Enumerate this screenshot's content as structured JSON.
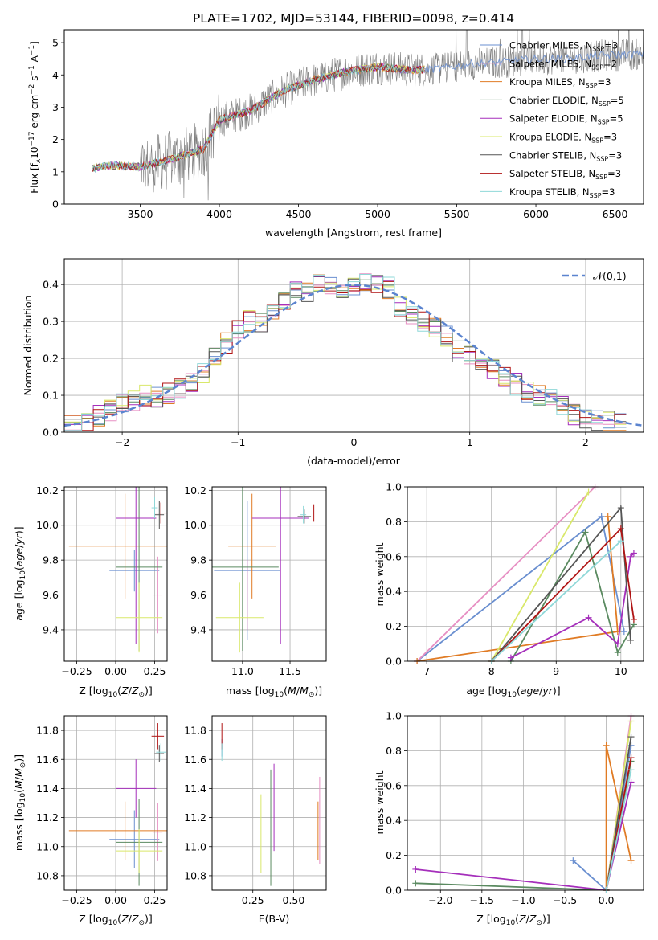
{
  "chart_data": [
    {
      "id": "spectrum",
      "type": "line",
      "title": "PLATE=1702, MJD=53144, FIBERID=0098, z=0.414",
      "xlabel": "wavelength [Angstrom, rest frame]",
      "ylabel": "Flux [f_λ10^-17 erg cm^-2 s^-1 A^-1]",
      "xlim": [
        3020,
        6680
      ],
      "ylim": [
        0,
        5.4
      ],
      "xticks": [
        3500,
        4000,
        4500,
        5000,
        5500,
        6000,
        6500
      ],
      "yticks": [
        0,
        1,
        2,
        3,
        4,
        5
      ],
      "legend_position": "upper-right",
      "series": [
        {
          "name": "Chabrier MILES, N_SSP=3",
          "color": "#6a8fd0"
        },
        {
          "name": "Salpeter MILES, N_SSP=2",
          "color": "#e78fc3"
        },
        {
          "name": "Kroupa MILES, N_SSP=3",
          "color": "#e07b24"
        },
        {
          "name": "Chabrier ELODIE, N_SSP=5",
          "color": "#5a8a60"
        },
        {
          "name": "Salpeter ELODIE, N_SSP=5",
          "color": "#a52fbb"
        },
        {
          "name": "Kroupa ELODIE, N_SSP=3",
          "color": "#d9e86a"
        },
        {
          "name": "Chabrier STELIB, N_SSP=3",
          "color": "#555555"
        },
        {
          "name": "Salpeter STELIB, N_SSP=3",
          "color": "#b01414"
        },
        {
          "name": "Kroupa STELIB, N_SSP=3",
          "color": "#8fd8d8"
        }
      ],
      "continuum": {
        "x": [
          3200,
          3300,
          3500,
          3700,
          3900,
          4000,
          4200,
          4400,
          4600,
          4800,
          5000,
          5200,
          5400,
          5600,
          5800,
          6000,
          6200,
          6400,
          6680
        ],
        "y": [
          1.1,
          1.2,
          1.15,
          1.4,
          1.7,
          2.6,
          2.9,
          3.5,
          3.85,
          4.1,
          4.25,
          4.15,
          4.2,
          4.35,
          4.4,
          4.5,
          4.5,
          4.6,
          4.65
        ]
      },
      "data_color": "#7f7f7f"
    },
    {
      "id": "residuals",
      "type": "step",
      "xlabel": "(data-model)/error",
      "ylabel": "Normed distribution",
      "xlim": [
        -2.5,
        2.5
      ],
      "ylim": [
        0,
        0.47
      ],
      "xticks": [
        -2,
        -1,
        0,
        1,
        2
      ],
      "yticks": [
        0,
        0.1,
        0.2,
        0.3,
        0.4
      ],
      "normal_label": "𝒩(0,1)",
      "normal_color": "#5b84cf",
      "base_hist": [
        0.025,
        0.03,
        0.045,
        0.06,
        0.08,
        0.085,
        0.1,
        0.095,
        0.105,
        0.12,
        0.14,
        0.16,
        0.2,
        0.24,
        0.28,
        0.3,
        0.3,
        0.33,
        0.36,
        0.39,
        0.38,
        0.4,
        0.4,
        0.39,
        0.4,
        0.41,
        0.4,
        0.39,
        0.34,
        0.31,
        0.3,
        0.28,
        0.26,
        0.22,
        0.21,
        0.19,
        0.17,
        0.15,
        0.13,
        0.11,
        0.1,
        0.09,
        0.07,
        0.05,
        0.04,
        0.035,
        0.03,
        0.028
      ],
      "bin_width": 0.1
    },
    {
      "id": "age-vs-Z",
      "type": "errorbar",
      "xlabel": "Z [log10(Z/Z⊙)]",
      "ylabel": "age [log10(age/yr)]",
      "xlim": [
        -0.33,
        0.33
      ],
      "ylim": [
        9.22,
        10.22
      ],
      "xticks": [
        -0.25,
        0.0,
        0.25
      ],
      "xticklabels": [
        "−0.25",
        "0.00",
        "0.25"
      ],
      "yticks": [
        9.4,
        9.6,
        9.8,
        10.0,
        10.2
      ],
      "points": [
        {
          "series": 0,
          "x": 0.12,
          "xerr": 0.16,
          "y": 9.74,
          "yerr": 0.12
        },
        {
          "series": 1,
          "x": 0.27,
          "xerr": 0.03,
          "y": 9.6,
          "yerr": 0.22
        },
        {
          "series": 2,
          "x": 0.06,
          "xerr": 0.36,
          "y": 9.88,
          "yerr": 0.3
        },
        {
          "series": 3,
          "x": 0.15,
          "xerr": 0.15,
          "y": 9.76,
          "yerr": 0.48
        },
        {
          "series": 4,
          "x": 0.13,
          "xerr": 0.13,
          "y": 10.04,
          "yerr": 0.72
        },
        {
          "series": 5,
          "x": 0.15,
          "xerr": 0.15,
          "y": 9.47,
          "yerr": 0.2
        },
        {
          "series": 6,
          "x": 0.28,
          "xerr": 0.03,
          "y": 10.06,
          "yerr": 0.08
        },
        {
          "series": 7,
          "x": 0.29,
          "xerr": 0.04,
          "y": 10.07,
          "yerr": 0.06
        },
        {
          "series": 8,
          "x": 0.25,
          "xerr": 0.02,
          "y": 10.1,
          "yerr": 0.06
        }
      ]
    },
    {
      "id": "age-vs-mass",
      "type": "errorbar",
      "xlabel": "mass [log10(M/M⊙)]",
      "xlim": [
        10.68,
        11.88
      ],
      "ylim": [
        9.22,
        10.22
      ],
      "xticks": [
        11.0,
        11.5
      ],
      "yticks": [
        9.4,
        9.6,
        9.8,
        10.0,
        10.2
      ],
      "points": [
        {
          "series": 0,
          "x": 11.05,
          "xerr": 0.35,
          "y": 9.74,
          "yerr": 0.4
        },
        {
          "series": 1,
          "x": 11.05,
          "xerr": 0.25,
          "y": 9.6,
          "yerr": 0.2
        },
        {
          "series": 2,
          "x": 11.1,
          "xerr": 0.25,
          "y": 9.88,
          "yerr": 0.3
        },
        {
          "series": 3,
          "x": 11.0,
          "xerr": 0.38,
          "y": 9.76,
          "yerr": 0.48
        },
        {
          "series": 4,
          "x": 11.4,
          "xerr": 0.3,
          "y": 10.04,
          "yerr": 0.72
        },
        {
          "series": 5,
          "x": 10.97,
          "xerr": 0.25,
          "y": 9.47,
          "yerr": 0.2
        },
        {
          "series": 6,
          "x": 11.65,
          "xerr": 0.07,
          "y": 10.05,
          "yerr": 0.04
        },
        {
          "series": 7,
          "x": 11.75,
          "xerr": 0.08,
          "y": 10.07,
          "yerr": 0.05
        },
        {
          "series": 8,
          "x": 11.64,
          "xerr": 0.03,
          "y": 10.06,
          "yerr": 0.05
        }
      ]
    },
    {
      "id": "massweight-vs-age",
      "type": "line",
      "xlabel": "age [log10(age/yr)]",
      "ylabel": "mass weight",
      "xlim": [
        6.7,
        10.35
      ],
      "ylim": [
        0,
        1.0
      ],
      "xticks": [
        7,
        8,
        9,
        10
      ],
      "yticks": [
        0.0,
        0.2,
        0.4,
        0.6,
        0.8,
        1.0
      ],
      "series": [
        {
          "series": 0,
          "x": [
            6.85,
            9.7,
            10.05
          ],
          "y": [
            0.0,
            0.83,
            0.17
          ]
        },
        {
          "series": 1,
          "x": [
            6.85,
            9.6
          ],
          "y": [
            0.0,
            1.0
          ]
        },
        {
          "series": 2,
          "x": [
            6.85,
            9.95,
            9.8
          ],
          "y": [
            0.0,
            0.17,
            0.83
          ]
        },
        {
          "series": 3,
          "x": [
            8.3,
            9.45,
            9.95,
            10.2
          ],
          "y": [
            0.0,
            0.74,
            0.05,
            0.21
          ]
        },
        {
          "series": 4,
          "x": [
            8.3,
            9.5,
            9.95,
            10.15,
            10.2
          ],
          "y": [
            0.02,
            0.25,
            0.1,
            0.6,
            0.62
          ]
        },
        {
          "series": 5,
          "x": [
            8.0,
            9.5
          ],
          "y": [
            0.0,
            0.97
          ]
        },
        {
          "series": 6,
          "x": [
            8.0,
            10.0,
            10.15
          ],
          "y": [
            0.0,
            0.88,
            0.12
          ]
        },
        {
          "series": 7,
          "x": [
            8.0,
            10.0,
            10.2
          ],
          "y": [
            0.0,
            0.76,
            0.24
          ]
        },
        {
          "series": 8,
          "x": [
            8.0,
            10.0
          ],
          "y": [
            0.0,
            0.69
          ]
        }
      ]
    },
    {
      "id": "mass-vs-Z",
      "type": "errorbar",
      "xlabel": "Z [log10(Z/Z⊙)]",
      "ylabel": "mass [log10(M/M⊙)]",
      "xlim": [
        -0.33,
        0.33
      ],
      "ylim": [
        10.7,
        11.9
      ],
      "xticks": [
        -0.25,
        0.0,
        0.25
      ],
      "xticklabels": [
        "−0.25",
        "0.00",
        "0.25"
      ],
      "yticks": [
        10.8,
        11.0,
        11.2,
        11.4,
        11.6,
        11.8
      ],
      "points": [
        {
          "series": 0,
          "x": 0.12,
          "xerr": 0.16,
          "y": 11.05,
          "yerr": 0.2
        },
        {
          "series": 1,
          "x": 0.27,
          "xerr": 0.03,
          "y": 11.1,
          "yerr": 0.2
        },
        {
          "series": 2,
          "x": 0.06,
          "xerr": 0.36,
          "y": 11.11,
          "yerr": 0.2
        },
        {
          "series": 3,
          "x": 0.15,
          "xerr": 0.15,
          "y": 11.03,
          "yerr": 0.3
        },
        {
          "series": 4,
          "x": 0.13,
          "xerr": 0.13,
          "y": 11.4,
          "yerr": 0.2
        },
        {
          "series": 5,
          "x": 0.15,
          "xerr": 0.15,
          "y": 10.97,
          "yerr": 0.15
        },
        {
          "series": 6,
          "x": 0.28,
          "xerr": 0.03,
          "y": 11.64,
          "yerr": 0.06
        },
        {
          "series": 7,
          "x": 0.27,
          "xerr": 0.04,
          "y": 11.76,
          "yerr": 0.09
        },
        {
          "series": 8,
          "x": 0.29,
          "xerr": 0.03,
          "y": 11.65,
          "yerr": 0.06
        }
      ]
    },
    {
      "id": "mass-vs-ebv",
      "type": "errorbar",
      "xlabel": "E(B-V)",
      "xlim": [
        0.0,
        0.7
      ],
      "ylim": [
        10.7,
        11.9
      ],
      "xticks": [
        0.25,
        0.5
      ],
      "xticklabels": [
        "0.25",
        "0.50"
      ],
      "yticks": [
        10.8,
        11.0,
        11.2,
        11.4,
        11.6,
        11.8
      ],
      "points": [
        {
          "series": 0,
          "x": 0.06,
          "xerr": 0.0,
          "y": 11.68,
          "yerr": 0.06
        },
        {
          "series": 2,
          "x": 0.65,
          "xerr": 0.0,
          "y": 11.11,
          "yerr": 0.2
        },
        {
          "series": 3,
          "x": 0.36,
          "xerr": 0.0,
          "y": 11.13,
          "yerr": 0.4
        },
        {
          "series": 4,
          "x": 0.38,
          "xerr": 0.0,
          "y": 11.27,
          "yerr": 0.3
        },
        {
          "series": 5,
          "x": 0.3,
          "xerr": 0.0,
          "y": 11.09,
          "yerr": 0.27
        },
        {
          "series": 1,
          "x": 0.66,
          "xerr": 0.0,
          "y": 11.18,
          "yerr": 0.3
        },
        {
          "series": 7,
          "x": 0.06,
          "xerr": 0.0,
          "y": 11.76,
          "yerr": 0.09
        },
        {
          "series": 8,
          "x": 0.06,
          "xerr": 0.0,
          "y": 11.65,
          "yerr": 0.06
        }
      ]
    },
    {
      "id": "massweight-vs-Z",
      "type": "line",
      "xlabel": "Z [log10(Z/Z⊙)]",
      "ylabel": "mass weight",
      "xlim": [
        -2.4,
        0.45
      ],
      "ylim": [
        0,
        1.0
      ],
      "xticks": [
        -2.0,
        -1.5,
        -1.0,
        -0.5,
        0.0
      ],
      "xticklabels": [
        "−2.0",
        "−1.5",
        "−1.0",
        "−0.5",
        "0.0"
      ],
      "yticks": [
        0.0,
        0.2,
        0.4,
        0.6,
        0.8,
        1.0
      ],
      "series": [
        {
          "series": 0,
          "x": [
            -0.4,
            0.0,
            0.3
          ],
          "y": [
            0.17,
            0.0,
            0.83
          ]
        },
        {
          "series": 1,
          "x": [
            0.0,
            0.3
          ],
          "y": [
            0.0,
            1.0
          ]
        },
        {
          "series": 2,
          "x": [
            0.0,
            0.0,
            0.3
          ],
          "y": [
            0.0,
            0.83,
            0.17
          ]
        },
        {
          "series": 3,
          "x": [
            -2.3,
            0.0,
            0.3
          ],
          "y": [
            0.04,
            0.0,
            0.74
          ]
        },
        {
          "series": 4,
          "x": [
            -2.3,
            0.0,
            0.3
          ],
          "y": [
            0.12,
            0.0,
            0.62
          ]
        },
        {
          "series": 5,
          "x": [
            0.0,
            0.3
          ],
          "y": [
            0.0,
            0.97
          ]
        },
        {
          "series": 6,
          "x": [
            0.0,
            0.3
          ],
          "y": [
            0.0,
            0.88
          ]
        },
        {
          "series": 7,
          "x": [
            0.0,
            0.3
          ],
          "y": [
            0.0,
            0.76
          ]
        },
        {
          "series": 8,
          "x": [
            0.0,
            0.3
          ],
          "y": [
            0.0,
            0.69
          ]
        }
      ]
    }
  ]
}
